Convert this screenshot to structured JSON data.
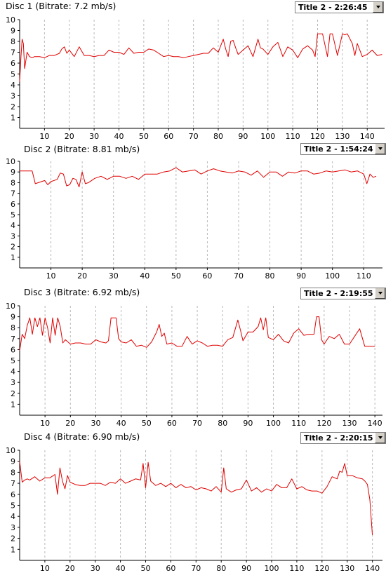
{
  "panels": [
    {
      "title": "Disc 1 (Bitrate: 7.2 mb/s)",
      "selected_title": "Title 2 - 2:26:45"
    },
    {
      "title": "Disc 2 (Bitrate: 8.81 mb/s)",
      "selected_title": "Title 2 - 1:54:24"
    },
    {
      "title": "Disc 3 (Bitrate: 6.92 mb/s)",
      "selected_title": "Title 2 - 2:19:55"
    },
    {
      "title": "Disc 4 (Bitrate: 6.90 mb/s)",
      "selected_title": "Title 2 - 2:20:15"
    }
  ],
  "colors": {
    "line": "#e00000",
    "grid": "#b8b8b8",
    "axis": "#000000"
  },
  "chart_data": [
    {
      "type": "line",
      "title": "Disc 1 (Bitrate: 7.2 mb/s)",
      "xlim": [
        0,
        147
      ],
      "ylim": [
        0,
        10
      ],
      "xticks": [
        10,
        20,
        30,
        40,
        50,
        60,
        70,
        80,
        90,
        100,
        110,
        120,
        130,
        140
      ],
      "yticks": [
        1,
        2,
        3,
        4,
        5,
        6,
        7,
        8,
        9,
        10
      ],
      "grid": "vertical dashed",
      "series": [
        {
          "x": [
            0,
            0.5,
            1,
            1.5,
            2,
            3,
            4,
            5,
            6,
            8,
            10,
            12,
            14,
            16,
            17,
            18,
            19,
            20,
            22,
            24,
            26,
            28,
            30,
            32,
            34,
            36,
            38,
            40,
            42,
            44,
            46,
            48,
            50,
            52,
            54,
            56,
            58,
            60,
            62,
            64,
            66,
            68,
            70,
            72,
            74,
            76,
            78,
            80,
            81,
            82,
            83,
            84,
            85,
            86,
            87,
            88,
            90,
            92,
            94,
            96,
            97,
            98,
            100,
            102,
            104,
            106,
            108,
            110,
            112,
            114,
            116,
            118,
            119,
            120,
            121,
            122,
            124,
            125,
            126,
            128,
            130,
            131,
            132,
            134,
            135,
            136,
            138,
            140,
            142,
            144,
            146
          ],
          "y": [
            4.3,
            6.5,
            8.2,
            7.8,
            5.5,
            7.0,
            6.6,
            6.5,
            6.6,
            6.6,
            6.5,
            6.7,
            6.7,
            6.9,
            7.3,
            7.5,
            6.9,
            7.2,
            6.6,
            7.5,
            6.7,
            6.7,
            6.6,
            6.7,
            6.7,
            7.2,
            7.0,
            7.0,
            6.8,
            7.4,
            6.9,
            7.0,
            7.0,
            7.3,
            7.2,
            6.9,
            6.6,
            6.7,
            6.6,
            6.6,
            6.5,
            6.6,
            6.7,
            6.8,
            6.9,
            6.9,
            7.4,
            7.0,
            7.6,
            8.2,
            7.3,
            6.6,
            8.0,
            8.1,
            7.4,
            6.8,
            7.2,
            7.6,
            6.6,
            8.2,
            7.4,
            7.3,
            6.8,
            7.5,
            7.9,
            6.6,
            7.5,
            7.2,
            6.5,
            7.3,
            7.6,
            7.2,
            6.6,
            8.7,
            8.7,
            8.7,
            6.6,
            8.7,
            8.7,
            6.7,
            8.7,
            8.6,
            8.7,
            7.8,
            6.7,
            7.8,
            6.6,
            6.8,
            7.2,
            6.7,
            6.8
          ]
        }
      ]
    },
    {
      "type": "line",
      "title": "Disc 2 (Bitrate: 8.81 mb/s)",
      "xlim": [
        0,
        116
      ],
      "ylim": [
        0,
        10
      ],
      "xticks": [
        10,
        20,
        30,
        40,
        50,
        60,
        70,
        80,
        90,
        100,
        110
      ],
      "yticks": [
        1,
        2,
        3,
        4,
        5,
        6,
        7,
        8,
        9,
        10
      ],
      "grid": "vertical dashed",
      "series": [
        {
          "x": [
            0,
            1,
            2,
            3,
            4,
            5,
            6,
            8,
            9,
            10,
            12,
            13,
            14,
            15,
            16,
            17,
            18,
            19,
            20,
            21,
            22,
            24,
            26,
            28,
            30,
            32,
            34,
            36,
            38,
            40,
            42,
            44,
            46,
            48,
            50,
            52,
            54,
            56,
            58,
            60,
            62,
            64,
            66,
            68,
            70,
            72,
            74,
            76,
            78,
            80,
            82,
            84,
            86,
            88,
            90,
            92,
            94,
            96,
            98,
            100,
            102,
            104,
            106,
            108,
            110,
            111,
            112,
            113,
            114
          ],
          "y": [
            9.1,
            9.1,
            9.1,
            9.1,
            9.1,
            7.9,
            8.0,
            8.2,
            7.8,
            8.1,
            8.3,
            8.9,
            8.8,
            7.7,
            7.8,
            8.4,
            8.3,
            7.6,
            9.0,
            7.9,
            8.0,
            8.4,
            8.6,
            8.3,
            8.6,
            8.6,
            8.4,
            8.6,
            8.3,
            8.8,
            8.8,
            8.8,
            9.0,
            9.1,
            9.4,
            9.0,
            9.1,
            9.2,
            8.8,
            9.1,
            9.3,
            9.1,
            9.0,
            8.9,
            9.1,
            9.0,
            8.7,
            9.1,
            8.5,
            9.0,
            9.0,
            8.6,
            9.0,
            8.9,
            9.1,
            9.1,
            8.8,
            8.9,
            9.1,
            9.0,
            9.1,
            9.2,
            9.0,
            9.1,
            8.8,
            7.9,
            8.8,
            8.5,
            8.6
          ]
        }
      ]
    },
    {
      "type": "line",
      "title": "Disc 3 (Bitrate: 6.92 mb/s)",
      "xlim": [
        0,
        143
      ],
      "ylim": [
        0,
        10
      ],
      "xticks": [
        10,
        20,
        30,
        40,
        50,
        60,
        70,
        80,
        90,
        100,
        110,
        120,
        130,
        140
      ],
      "yticks": [
        1,
        2,
        3,
        4,
        5,
        6,
        7,
        8,
        9,
        10
      ],
      "grid": "vertical dashed",
      "series": [
        {
          "x": [
            0,
            1,
            2,
            3,
            4,
            5,
            6,
            7,
            8,
            9,
            10,
            11,
            12,
            13,
            14,
            15,
            16,
            17,
            18,
            20,
            22,
            24,
            26,
            28,
            30,
            32,
            34,
            35,
            36,
            37,
            38,
            39,
            40,
            42,
            44,
            46,
            48,
            50,
            52,
            54,
            55,
            56,
            57,
            58,
            60,
            62,
            64,
            66,
            68,
            70,
            72,
            74,
            76,
            78,
            80,
            82,
            84,
            86,
            87,
            88,
            90,
            92,
            94,
            95,
            96,
            97,
            98,
            100,
            102,
            104,
            106,
            108,
            110,
            112,
            114,
            116,
            117,
            118,
            119,
            120,
            122,
            124,
            126,
            128,
            130,
            132,
            134,
            136,
            138,
            140
          ],
          "y": [
            5.9,
            7.4,
            7.0,
            8.2,
            8.9,
            7.4,
            8.9,
            8.1,
            8.9,
            7.3,
            8.9,
            8.0,
            6.6,
            8.9,
            7.3,
            8.9,
            8.1,
            6.6,
            6.9,
            6.5,
            6.6,
            6.6,
            6.5,
            6.5,
            6.9,
            6.7,
            6.6,
            6.8,
            8.9,
            8.9,
            8.9,
            7.0,
            6.7,
            6.6,
            6.9,
            6.3,
            6.4,
            6.2,
            6.7,
            7.6,
            8.3,
            7.2,
            7.5,
            6.5,
            6.6,
            6.3,
            6.3,
            7.2,
            6.5,
            6.8,
            6.6,
            6.3,
            6.4,
            6.4,
            6.3,
            6.9,
            7.1,
            8.7,
            7.8,
            6.8,
            7.6,
            7.6,
            8.1,
            8.9,
            7.8,
            8.9,
            7.1,
            6.9,
            7.4,
            6.8,
            6.6,
            7.5,
            7.9,
            7.3,
            7.4,
            7.4,
            9.0,
            9.0,
            6.9,
            6.5,
            7.2,
            7.0,
            7.4,
            6.5,
            6.5,
            7.2,
            7.9,
            6.3,
            6.3,
            6.3
          ]
        }
      ]
    },
    {
      "type": "line",
      "title": "Disc 4 (Bitrate: 6.90 mb/s)",
      "xlim": [
        0,
        144
      ],
      "ylim": [
        0,
        10
      ],
      "xticks": [
        10,
        20,
        30,
        40,
        50,
        60,
        70,
        80,
        90,
        100,
        110,
        120,
        130,
        140
      ],
      "yticks": [
        1,
        2,
        3,
        4,
        5,
        6,
        7,
        8,
        9,
        10
      ],
      "grid": "vertical dashed",
      "series": [
        {
          "x": [
            0,
            1,
            2,
            3,
            4,
            6,
            8,
            10,
            12,
            14,
            15,
            16,
            17,
            18,
            19,
            20,
            22,
            24,
            26,
            28,
            30,
            32,
            34,
            36,
            38,
            40,
            42,
            44,
            46,
            48,
            49,
            50,
            51,
            52,
            54,
            56,
            58,
            60,
            62,
            64,
            66,
            68,
            70,
            72,
            74,
            76,
            78,
            80,
            81,
            82,
            84,
            86,
            88,
            90,
            92,
            94,
            96,
            98,
            100,
            102,
            104,
            106,
            108,
            110,
            112,
            114,
            116,
            118,
            120,
            122,
            124,
            126,
            127,
            128,
            129,
            130,
            132,
            134,
            136,
            137,
            138,
            139,
            140
          ],
          "y": [
            9.0,
            7.1,
            7.3,
            7.4,
            7.3,
            7.6,
            7.2,
            7.5,
            7.5,
            7.8,
            6.0,
            8.4,
            7.2,
            6.5,
            7.7,
            7.1,
            6.9,
            6.8,
            6.8,
            7.0,
            7.0,
            7.0,
            6.8,
            7.1,
            7.0,
            7.4,
            7.0,
            7.2,
            7.4,
            7.3,
            8.8,
            6.6,
            8.9,
            7.2,
            6.8,
            7.0,
            6.7,
            7.0,
            6.6,
            6.9,
            6.6,
            6.7,
            6.4,
            6.6,
            6.5,
            6.3,
            6.7,
            6.2,
            8.4,
            6.5,
            6.2,
            6.4,
            6.5,
            7.3,
            6.3,
            6.6,
            6.2,
            6.5,
            6.3,
            6.9,
            6.6,
            6.6,
            7.4,
            6.5,
            6.7,
            6.4,
            6.3,
            6.3,
            6.1,
            6.7,
            7.6,
            7.4,
            8.1,
            8.0,
            8.8,
            7.7,
            7.7,
            7.5,
            7.4,
            7.2,
            6.9,
            5.5,
            2.3
          ]
        }
      ]
    }
  ]
}
